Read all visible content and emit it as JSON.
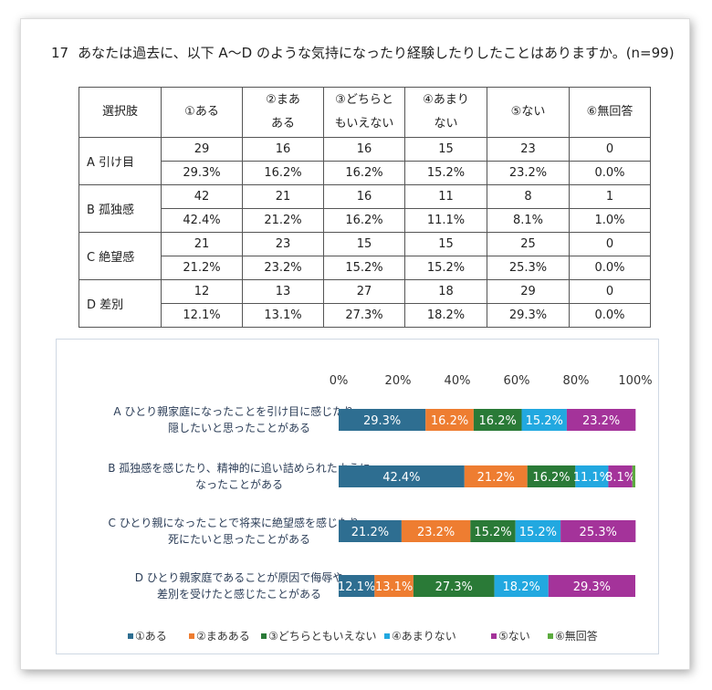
{
  "question": {
    "number": "17",
    "text": "あなたは過去に、以下 A～D のような気持になったり経験したりしたことはありますか。(n=99)"
  },
  "table": {
    "headers": [
      "選択肢",
      "①ある",
      "②まあ\nある",
      "③どちらと\nもいえない",
      "④あまり\nない",
      "⑤ない",
      "⑥無回答"
    ],
    "rows": [
      {
        "label": "A 引け目",
        "counts": [
          "29",
          "16",
          "16",
          "15",
          "23",
          "0"
        ],
        "pcts": [
          "29.3%",
          "16.2%",
          "16.2%",
          "15.2%",
          "23.2%",
          "0.0%"
        ]
      },
      {
        "label": "B 孤独感",
        "counts": [
          "42",
          "21",
          "16",
          "11",
          "8",
          "1"
        ],
        "pcts": [
          "42.4%",
          "21.2%",
          "16.2%",
          "11.1%",
          "8.1%",
          "1.0%"
        ]
      },
      {
        "label": "C 絶望感",
        "counts": [
          "21",
          "23",
          "15",
          "15",
          "25",
          "0"
        ],
        "pcts": [
          "21.2%",
          "23.2%",
          "15.2%",
          "15.2%",
          "25.3%",
          "0.0%"
        ]
      },
      {
        "label": "D 差別",
        "counts": [
          "12",
          "13",
          "27",
          "18",
          "29",
          "0"
        ],
        "pcts": [
          "12.1%",
          "13.1%",
          "27.3%",
          "18.2%",
          "29.3%",
          "0.0%"
        ]
      }
    ]
  },
  "chart_data": {
    "type": "bar",
    "orientation": "horizontal",
    "stacked": "percent",
    "xlim": [
      0,
      100
    ],
    "ticks": [
      "0%",
      "20%",
      "40%",
      "60%",
      "80%",
      "100%"
    ],
    "categories": [
      [
        "A ひとり親家庭になったことを引け目に感じたり、",
        "隠したいと思ったことがある"
      ],
      [
        "B 孤独感を感じたり、精神的に追い詰められたように",
        "なったことがある"
      ],
      [
        "C ひとり親になったことで将来に絶望感を感じたり、",
        "死にたいと思ったことがある"
      ],
      [
        "D ひとり親家庭であることが原因で侮辱や",
        "差別を受けたと感じたことがある"
      ]
    ],
    "series": [
      {
        "name": "①ある",
        "color": "#2e6e91",
        "values": [
          29.3,
          42.4,
          21.2,
          12.1
        ]
      },
      {
        "name": "②まあある",
        "color": "#ee7d31",
        "values": [
          16.2,
          21.2,
          23.2,
          13.1
        ]
      },
      {
        "name": "③どちらともいえない",
        "color": "#2a7a37",
        "values": [
          16.2,
          16.2,
          15.2,
          27.3
        ]
      },
      {
        "name": "④あまりない",
        "color": "#22a8e0",
        "values": [
          15.2,
          11.1,
          15.2,
          18.2
        ]
      },
      {
        "name": "⑤ない",
        "color": "#a4339a",
        "values": [
          23.2,
          8.1,
          25.3,
          29.3
        ]
      },
      {
        "name": "⑥無回答",
        "color": "#5cab3f",
        "values": [
          0.0,
          1.0,
          0.0,
          0.0
        ]
      }
    ],
    "data_labels": [
      [
        "29.3%",
        "16.2%",
        "16.2%",
        "15.2%",
        "23.2%",
        ""
      ],
      [
        "42.4%",
        "21.2%",
        "16.2%",
        "11.1%",
        "8.1%",
        ""
      ],
      [
        "21.2%",
        "23.2%",
        "15.2%",
        "15.2%",
        "25.3%",
        ""
      ],
      [
        "12.1%",
        "13.1%",
        "27.3%",
        "18.2%",
        "29.3%",
        ""
      ]
    ],
    "legend_position": "bottom"
  }
}
